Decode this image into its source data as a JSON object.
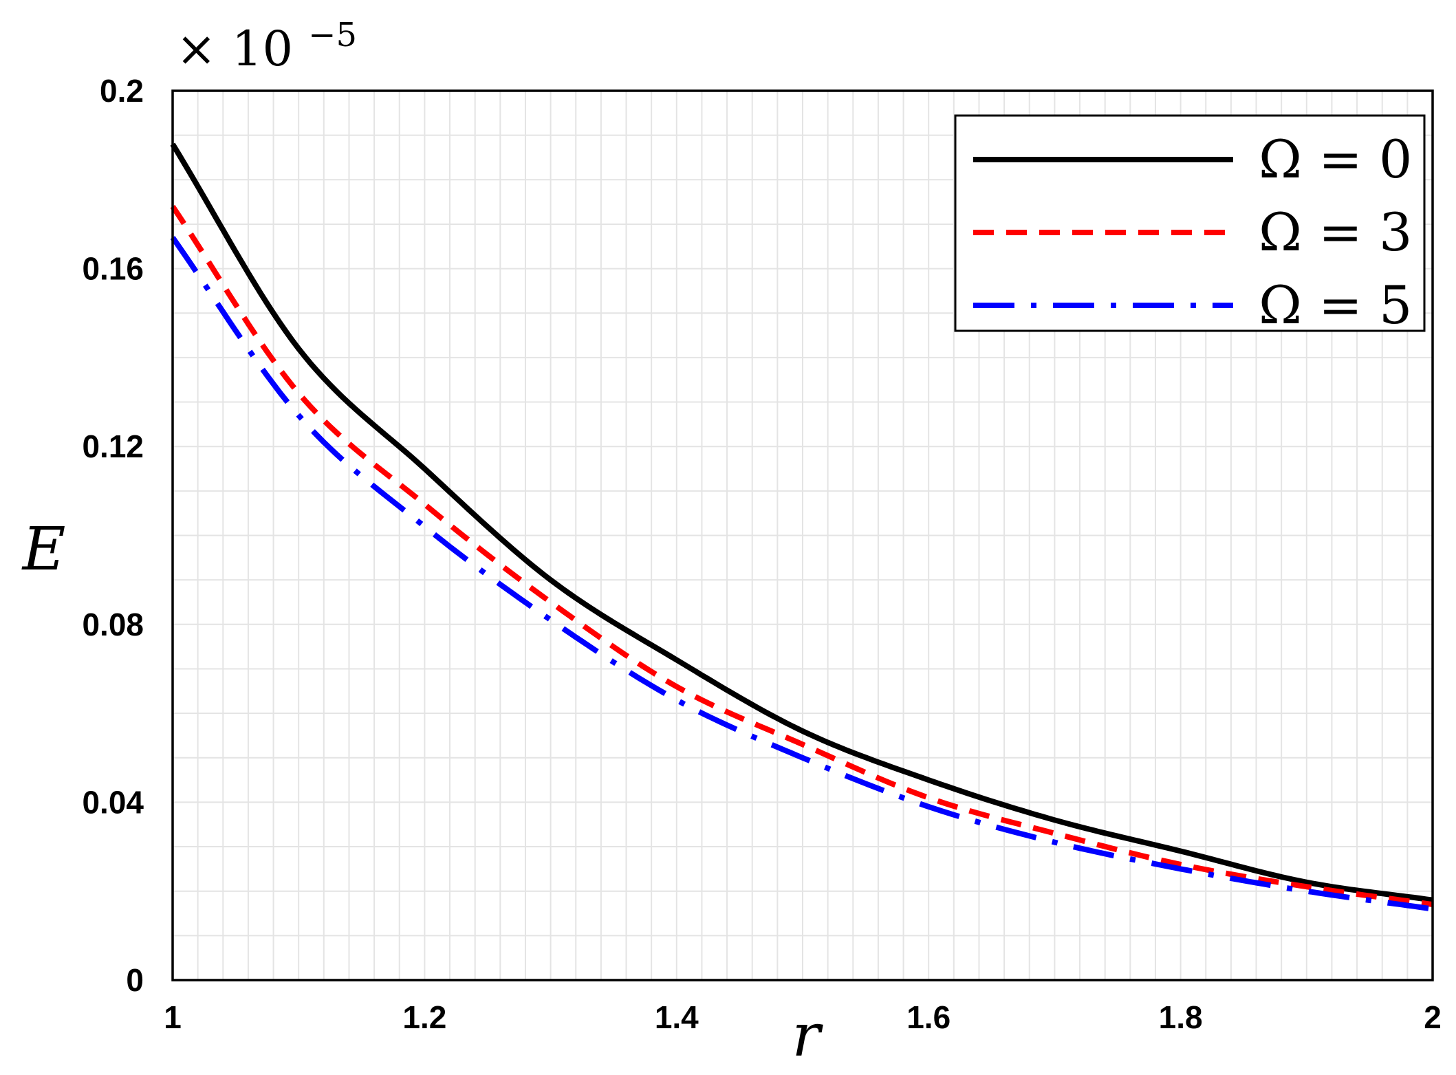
{
  "chart_data": {
    "type": "line",
    "title": "",
    "xlabel": "r",
    "ylabel": "E",
    "y_multiplier": "× 10",
    "y_multiplier_exponent": "−5",
    "xlim": [
      1,
      2
    ],
    "ylim": [
      0,
      0.2
    ],
    "x_ticks": [
      "1",
      "1.2",
      "1.4",
      "1.6",
      "1.8",
      "2"
    ],
    "y_ticks": [
      "0",
      "0.04",
      "0.08",
      "0.12",
      "0.16",
      "0.2"
    ],
    "grid": true,
    "legend_position": "top-right",
    "x": [
      1.0,
      1.1,
      1.2,
      1.3,
      1.4,
      1.5,
      1.6,
      1.7,
      1.8,
      1.9,
      2.0
    ],
    "series": [
      {
        "name": "Ω = 0",
        "color": "#000000",
        "style": "solid",
        "values": [
          0.188,
          0.142,
          0.115,
          0.09,
          0.072,
          0.056,
          0.045,
          0.036,
          0.029,
          0.022,
          0.018
        ]
      },
      {
        "name": "Ω = 3",
        "color": "#ff0000",
        "style": "dashed",
        "values": [
          0.174,
          0.132,
          0.107,
          0.085,
          0.066,
          0.053,
          0.041,
          0.033,
          0.026,
          0.021,
          0.017
        ]
      },
      {
        "name": "Ω = 5",
        "color": "#0000ff",
        "style": "long-dash-dot",
        "values": [
          0.167,
          0.127,
          0.102,
          0.081,
          0.063,
          0.05,
          0.039,
          0.031,
          0.025,
          0.02,
          0.016
        ]
      }
    ]
  }
}
